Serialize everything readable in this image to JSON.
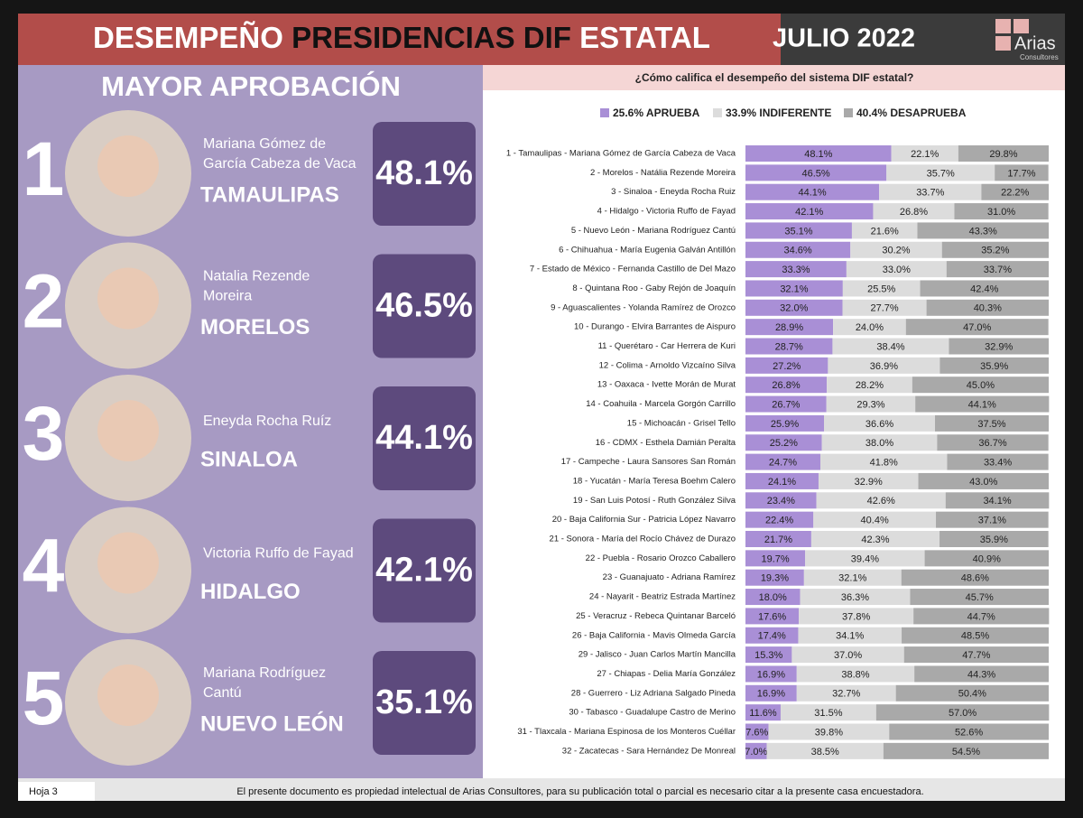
{
  "header": {
    "title": [
      "DESEMPEÑO",
      "PRESIDENCIAS DIF",
      "ESTATAL"
    ],
    "date": "JULIO 2022",
    "logo": "Arias",
    "logo_sub": "Consultores"
  },
  "ranking": {
    "heading": "MAYOR APROBACIÓN",
    "items": [
      {
        "rank": 1,
        "name": [
          "Mariana Gómez de",
          "García Cabeza de Vaca"
        ],
        "state": "TAMAULIPAS",
        "value": "48.1%"
      },
      {
        "rank": 2,
        "name": [
          "Natalia Rezende",
          "Moreira"
        ],
        "state": "MORELOS",
        "value": "46.5%"
      },
      {
        "rank": 3,
        "name": [
          "Eneyda Rocha Ruíz"
        ],
        "state": "SINALOA",
        "value": "44.1%"
      },
      {
        "rank": 4,
        "name": [
          "Victoria Ruffo de Fayad"
        ],
        "state": "HIDALGO",
        "value": "42.1%"
      },
      {
        "rank": 5,
        "name": [
          "Mariana Rodríguez",
          "Cantú"
        ],
        "state": "NUEVO LEÓN",
        "value": "35.1%"
      }
    ]
  },
  "chart_data": {
    "type": "stacked_bar_horizontal",
    "title": "¿Cómo califica el desempeño del sistema DIF estatal?",
    "xlim": [
      0,
      100
    ],
    "categories": [
      "1 - Tamaulipas - Mariana Gómez de García Cabeza de Vaca",
      "2 - Morelos - Natália Rezende Moreira",
      "3 - Sinaloa - Eneyda Rocha Ruiz",
      "4 - Hidalgo - Victoria Ruffo de Fayad",
      "5 - Nuevo León - Mariana Rodríguez Cantú",
      "6 - Chihuahua - María Eugenia Galván Antillón",
      "7 - Estado de México - Fernanda Castillo de Del Mazo",
      "8 - Quintana Roo - Gaby Rejón de Joaquín",
      "9 - Aguascalientes - Yolanda Ramírez de Orozco",
      "10 - Durango - Elvira Barrantes de Aispuro",
      "11 - Querétaro - Car Herrera de Kuri",
      "12 - Colima - Arnoldo Vizcaíno Silva",
      "13 - Oaxaca - Ivette Morán de Murat",
      "14 - Coahuila - Marcela Gorgón Carrillo",
      "15 - Michoacán - Grisel Tello",
      "16 - CDMX - Esthela Damián Peralta",
      "17 - Campeche - Laura Sansores San Román",
      "18 - Yucatán - María Teresa Boehm Calero",
      "19 - San Luis Potosí - Ruth González Silva",
      "20 - Baja California Sur - Patricia López Navarro",
      "21 - Sonora - María del Rocío Chávez de Durazo",
      "22 - Puebla - Rosario Orozco Caballero",
      "23 - Guanajuato - Adriana Ramírez",
      "24 - Nayarit - Beatriz Estrada Martínez",
      "25 - Veracruz - Rebeca Quintanar Barceló",
      "26 - Baja California - Mavis Olmeda García",
      "29 - Jalisco - Juan Carlos Martín Mancilla",
      "27 - Chiapas - Delia María González",
      "28 - Guerrero - Liz Adriana Salgado Pineda",
      "30 - Tabasco - Guadalupe Castro de Merino",
      "31 - Tlaxcala - Mariana Espinosa de los Monteros Cuéllar",
      "32 - Zacatecas - Sara Hernández De Monreal"
    ],
    "series": [
      {
        "name": "25.6% APRUEBA",
        "color": "#a98fd6",
        "values": [
          48.1,
          46.5,
          44.1,
          42.1,
          35.1,
          34.6,
          33.3,
          32.1,
          32.0,
          28.9,
          28.7,
          27.2,
          26.8,
          26.7,
          25.9,
          25.2,
          24.7,
          24.1,
          23.4,
          22.4,
          21.7,
          19.7,
          19.3,
          18.0,
          17.6,
          17.4,
          15.3,
          16.9,
          16.9,
          11.6,
          7.6,
          7.0
        ],
        "value_labels": [
          "48.1%",
          "46.5%",
          "44.1%",
          "42.1%",
          "35.1%",
          "34.6%",
          "33.3%",
          "32.1%",
          "32.0%",
          "28.9%",
          "28.7%",
          "27.2%",
          "26.8%",
          "26.7%",
          "25.9%",
          "25.2%",
          "24.7%",
          "24.1%",
          "23.4%",
          "22.4%",
          "21.7%",
          "19.7%",
          "19.3%",
          "18.0%",
          "17.6%",
          "17.4%",
          "15.3%",
          "16.9%",
          "16.9%",
          "11.6%",
          "7.6%",
          "7.0%"
        ]
      },
      {
        "name": "33.9% INDIFERENTE",
        "color": "#dcdcdc",
        "values": [
          22.1,
          35.7,
          33.7,
          26.8,
          21.6,
          30.2,
          33.0,
          25.5,
          27.7,
          24.0,
          38.4,
          36.9,
          28.2,
          29.3,
          36.6,
          38.0,
          41.8,
          32.9,
          42.6,
          40.4,
          42.3,
          39.4,
          32.1,
          36.3,
          37.8,
          34.1,
          37.0,
          38.8,
          32.7,
          31.5,
          39.8,
          38.5
        ],
        "value_labels": [
          "22.1%",
          "35.7%",
          "33.7%",
          "26.8%",
          "21.6%",
          "30.2%",
          "33.0%",
          "25.5%",
          "27.7%",
          "24.0%",
          "38.4%",
          "36.9%",
          "28.2%",
          "29.3%",
          "36.6%",
          "38.0%",
          "41.8%",
          "32.9%",
          "42.6%",
          "40.4%",
          "42.3%",
          "39.4%",
          "32.1%",
          "36.3%",
          "37.8%",
          "34.1%",
          "37.0%",
          "38.8%",
          "32.7%",
          "31.5%",
          "39.8%",
          "38.5%"
        ]
      },
      {
        "name": "40.4% DESAPRUEBA",
        "color": "#a9a9a9",
        "values": [
          29.8,
          17.7,
          22.2,
          31.0,
          43.3,
          35.2,
          33.7,
          42.4,
          40.3,
          47.0,
          32.9,
          35.9,
          45.0,
          44.1,
          37.5,
          36.7,
          33.4,
          43.0,
          34.1,
          37.1,
          35.9,
          40.9,
          48.6,
          45.7,
          44.7,
          48.5,
          47.7,
          44.3,
          50.4,
          57.0,
          52.6,
          54.5
        ],
        "value_labels": [
          "29.8%",
          "17.7%",
          "22.2%",
          "31.0%",
          "43.3%",
          "35.2%",
          "33.7%",
          "42.4%",
          "40.3%",
          "47.0%",
          "32.9%",
          "35.9%",
          "45.0%",
          "44.1%",
          "37.5%",
          "36.7%",
          "33.4%",
          "43.0%",
          "34.1%",
          "37.1%",
          "35.9%",
          "40.9%",
          "48.6%",
          "45.7%",
          "44.7%",
          "48.5%",
          "47.7%",
          "44.3%",
          "50.4%",
          "57.0%",
          "52.6%",
          "54.5%"
        ]
      }
    ]
  },
  "footer": {
    "page": "Hoja 3",
    "note": "El presente documento es propiedad intelectual de Arias Consultores, para su publicación total o parcial es necesario citar a la presente casa encuestadora."
  }
}
